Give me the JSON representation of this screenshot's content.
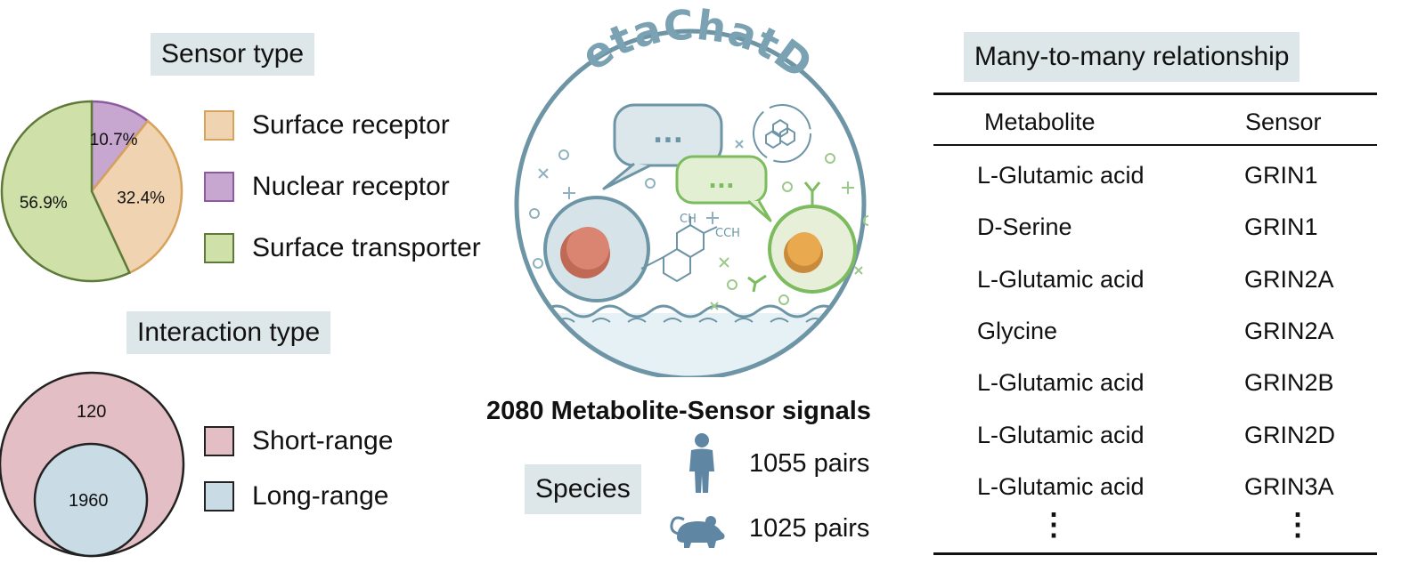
{
  "sensor_type": {
    "title": "Sensor type",
    "legend": [
      {
        "label": "Surface receptor",
        "color": "#f0d3b0",
        "edge": "#d6a25c"
      },
      {
        "label": "Nuclear receptor",
        "color": "#c7a6d0",
        "edge": "#8b5aa0"
      },
      {
        "label": "Surface transporter",
        "color": "#cfe0a8",
        "edge": "#5e7a3a"
      }
    ]
  },
  "interaction_type": {
    "title": "Interaction type",
    "legend": [
      {
        "label": "Short-range",
        "color": "#e3bec4",
        "edge": "#222222"
      },
      {
        "label": "Long-range",
        "color": "#c9dce6",
        "edge": "#222222"
      }
    ],
    "outer_value": "120",
    "inner_value": "1960"
  },
  "chart_data": [
    {
      "type": "pie",
      "title": "Sensor type",
      "categories": [
        "Surface receptor",
        "Nuclear receptor",
        "Surface transporter"
      ],
      "values": [
        32.4,
        10.7,
        56.9
      ],
      "labels": [
        "32.4%",
        "10.7%",
        "56.9%"
      ],
      "colors": [
        "#f0d3b0",
        "#c7a6d0",
        "#cfe0a8"
      ]
    }
  ],
  "center": {
    "logo_text": "MetaChatDB",
    "signals": "2080 Metabolite-Sensor signals",
    "species_label": "Species",
    "human_pairs": "1055 pairs",
    "mouse_pairs": "1025 pairs",
    "human_icon": "human-icon",
    "mouse_icon": "mouse-icon",
    "molecule_label_1": "CH",
    "molecule_label_2": "CCH",
    "speech_dots": "..."
  },
  "table": {
    "title": "Many-to-many relationship",
    "headers": [
      "Metabolite",
      "Sensor"
    ],
    "rows": [
      [
        "L-Glutamic acid",
        "GRIN1"
      ],
      [
        "D-Serine",
        "GRIN1"
      ],
      [
        "L-Glutamic acid",
        "GRIN2A"
      ],
      [
        "Glycine",
        "GRIN2A"
      ],
      [
        "L-Glutamic acid",
        "GRIN2B"
      ],
      [
        "L-Glutamic acid",
        "GRIN2D"
      ],
      [
        "L-Glutamic acid",
        "GRIN3A"
      ]
    ],
    "ellipsis": "⋮"
  }
}
